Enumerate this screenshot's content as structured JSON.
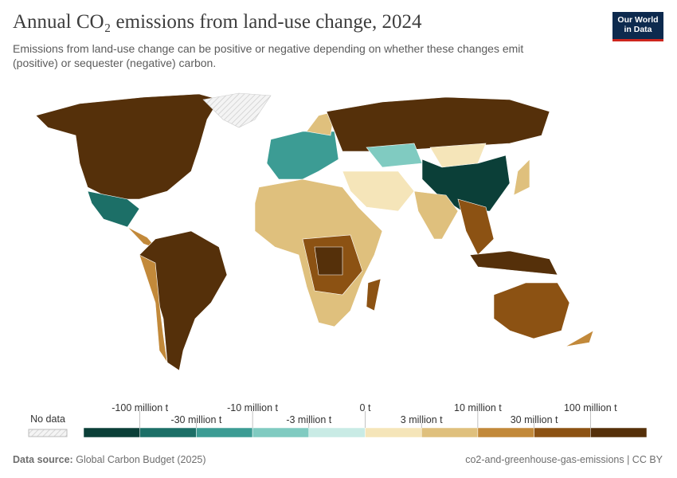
{
  "header": {
    "title": "Annual CO₂ emissions from land-use change, 2024",
    "subtitle_line1": "Emissions from land-use change can be positive or negative depending on whether these changes emit",
    "subtitle_line2": "(positive) or sequester (negative) carbon.",
    "logo_line1": "Our World",
    "logo_line2": "in Data"
  },
  "legend": {
    "no_data": "No data",
    "ticks": [
      "-100 million t",
      "-30 million t",
      "-10 million t",
      "-3 million t",
      "0 t",
      "3 million t",
      "10 million t",
      "30 million t",
      "100 million t"
    ],
    "colors": [
      "#0b3f38",
      "#1c6f67",
      "#3c9c94",
      "#80cbc1",
      "#c9ebe5",
      "#f5e5b9",
      "#dfc07d",
      "#c2893a",
      "#8c5213",
      "#55300a"
    ]
  },
  "footer": {
    "source_label": "Data source:",
    "source": "Global Carbon Budget (2025)",
    "right": "co2-and-greenhouse-gas-emissions | CC BY"
  }
}
